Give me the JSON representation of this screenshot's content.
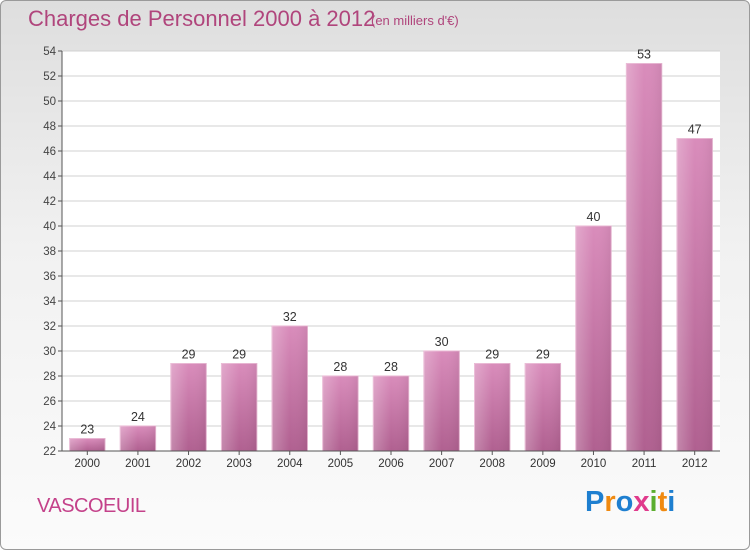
{
  "title": "Charges de Personnel 2000 à 2012",
  "subtitle": "(en milliers d'€)",
  "commune": "VASCOEUIL",
  "logo": {
    "text": "Proxiti",
    "letters": [
      "P",
      "r",
      "o",
      "x",
      "i",
      "t",
      "i"
    ],
    "colors": [
      "#1e7fd0",
      "#f08a10",
      "#1e7fd0",
      "#e03a8c",
      "#5cae2f",
      "#f08a10",
      "#1e7fd0"
    ]
  },
  "chart_data": {
    "type": "bar",
    "categories": [
      "2000",
      "2001",
      "2002",
      "2003",
      "2004",
      "2005",
      "2006",
      "2007",
      "2008",
      "2009",
      "2010",
      "2011",
      "2012"
    ],
    "values": [
      23,
      24,
      29,
      29,
      32,
      28,
      28,
      30,
      29,
      29,
      40,
      53,
      47
    ],
    "ylim": [
      22,
      54
    ],
    "yticks": [
      22,
      24,
      26,
      28,
      30,
      32,
      34,
      36,
      38,
      40,
      42,
      44,
      46,
      48,
      50,
      52,
      54
    ],
    "grid": true,
    "bar_color": "#d98cbb",
    "bar_color_dark": "#b06090"
  }
}
